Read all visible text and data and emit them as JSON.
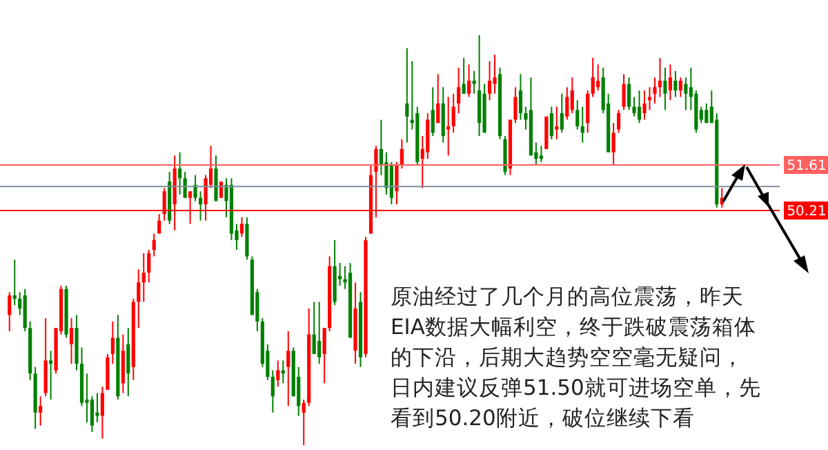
{
  "chart_data": {
    "type": "candlestick",
    "tick_labels": "y",
    "ylim": [
      42.85,
      56.68
    ],
    "categories": [
      null,
      null,
      null,
      null,
      null,
      null,
      null,
      null,
      null,
      null,
      null,
      null,
      null,
      null,
      null,
      null,
      null,
      null,
      null,
      null,
      null,
      null,
      null,
      null,
      null,
      null,
      null,
      null,
      null,
      null,
      null,
      null,
      null,
      null,
      null,
      null,
      null,
      null,
      null,
      null,
      null,
      null,
      null,
      null,
      null,
      null,
      null,
      null,
      null,
      null,
      null,
      null,
      null,
      null,
      null,
      null,
      null,
      null,
      null,
      null,
      null,
      null,
      null,
      null,
      null,
      null,
      null,
      null,
      null,
      null,
      null,
      null,
      null,
      null,
      null,
      null,
      null,
      null,
      null,
      null,
      null,
      null,
      null,
      null,
      null,
      null,
      null,
      null,
      null,
      null,
      null,
      null,
      null,
      null,
      null,
      null,
      null,
      null,
      null,
      null,
      null,
      null,
      null,
      null,
      null,
      null,
      null,
      null,
      null,
      null,
      null,
      null,
      null,
      null,
      null,
      null,
      null,
      null,
      null,
      null,
      null,
      null,
      null,
      null,
      null,
      null,
      null,
      null,
      null,
      null,
      null,
      null,
      null,
      null,
      null,
      null,
      null,
      null,
      null
    ],
    "ohlc": [
      [
        47.0,
        47.7,
        46.5,
        47.6
      ],
      [
        47.6,
        48.7,
        47.3,
        47.5
      ],
      [
        47.5,
        47.7,
        47.0,
        47.2
      ],
      [
        47.6,
        47.8,
        46.5,
        46.6
      ],
      [
        46.6,
        46.8,
        45.0,
        45.2
      ],
      [
        45.2,
        45.4,
        43.5,
        44.0
      ],
      [
        44.0,
        44.5,
        43.6,
        44.2
      ],
      [
        44.6,
        46.9,
        44.5,
        45.6
      ],
      [
        45.6,
        45.9,
        44.4,
        45.5
      ],
      [
        45.3,
        46.6,
        45.2,
        46.6
      ],
      [
        46.5,
        47.9,
        46.4,
        47.8
      ],
      [
        47.8,
        47.9,
        46.3,
        46.4
      ],
      [
        46.1,
        46.9,
        45.5,
        46.6
      ],
      [
        46.6,
        47.0,
        45.3,
        45.5
      ],
      [
        45.5,
        46.0,
        44.2,
        44.3
      ],
      [
        44.4,
        45.2,
        43.7,
        44.3
      ],
      [
        44.4,
        44.5,
        43.4,
        43.6
      ],
      [
        44.0,
        44.6,
        43.7,
        43.9
      ],
      [
        43.9,
        44.8,
        43.2,
        44.6
      ],
      [
        44.7,
        45.8,
        44.7,
        45.7
      ],
      [
        45.8,
        46.8,
        45.5,
        46.3
      ],
      [
        46.3,
        47.0,
        44.4,
        44.5
      ],
      [
        44.9,
        46.4,
        44.6,
        45.9
      ],
      [
        46.1,
        46.6,
        44.5,
        45.2
      ],
      [
        45.4,
        47.5,
        45.0,
        47.4
      ],
      [
        47.4,
        48.4,
        46.6,
        48.0
      ],
      [
        48.0,
        48.9,
        47.4,
        48.3
      ],
      [
        48.3,
        49.0,
        48.0,
        48.9
      ],
      [
        49.0,
        49.5,
        48.8,
        49.3
      ],
      [
        49.5,
        50.1,
        49.5,
        49.9
      ],
      [
        50.1,
        50.9,
        49.9,
        50.8
      ],
      [
        51.1,
        51.4,
        49.8,
        49.9
      ],
      [
        50.4,
        51.9,
        49.6,
        51.5
      ],
      [
        51.5,
        52.0,
        50.7,
        51.2
      ],
      [
        51.2,
        51.4,
        50.6,
        50.6
      ],
      [
        50.6,
        50.8,
        49.8,
        50.8
      ],
      [
        51.0,
        51.3,
        50.5,
        50.6
      ],
      [
        50.6,
        50.8,
        49.9,
        50.4
      ],
      [
        50.4,
        51.3,
        49.9,
        51.2
      ],
      [
        51.0,
        52.2,
        50.9,
        51.5
      ],
      [
        51.5,
        51.9,
        50.5,
        50.5
      ],
      [
        50.6,
        51.1,
        50.6,
        51.1
      ],
      [
        51.0,
        51.2,
        50.0,
        50.5
      ],
      [
        51.0,
        51.2,
        49.3,
        49.5
      ],
      [
        49.6,
        49.8,
        49.0,
        49.3
      ],
      [
        49.5,
        50.0,
        49.4,
        49.8
      ],
      [
        49.8,
        50.0,
        48.7,
        48.8
      ],
      [
        48.7,
        48.8,
        47.0,
        47.0
      ],
      [
        47.7,
        47.8,
        46.5,
        46.8
      ],
      [
        46.8,
        46.9,
        45.4,
        45.5
      ],
      [
        45.9,
        46.1,
        45.0,
        45.1
      ],
      [
        45.1,
        45.3,
        44.0,
        44.5
      ],
      [
        45.0,
        45.6,
        44.8,
        45.3
      ],
      [
        45.3,
        45.6,
        44.9,
        45.2
      ],
      [
        45.4,
        46.5,
        44.2,
        45.9
      ],
      [
        45.9,
        46.0,
        44.5,
        44.5
      ],
      [
        45.1,
        45.4,
        43.9,
        44.2
      ],
      [
        44.0,
        44.4,
        43.0,
        44.3
      ],
      [
        44.3,
        47.2,
        44.2,
        46.4
      ],
      [
        46.4,
        47.4,
        45.8,
        45.8
      ],
      [
        46.2,
        47.4,
        45.5,
        45.7
      ],
      [
        45.8,
        46.6,
        44.9,
        46.6
      ],
      [
        46.6,
        48.8,
        46.5,
        48.5
      ],
      [
        48.5,
        49.3,
        47.3,
        47.4
      ],
      [
        48.2,
        48.6,
        47.9,
        48.1
      ],
      [
        48.1,
        48.5,
        47.8,
        48.0
      ],
      [
        48.3,
        48.6,
        46.3,
        46.3
      ],
      [
        45.9,
        48.0,
        45.5,
        47.2
      ],
      [
        47.4,
        47.7,
        45.4,
        45.7
      ],
      [
        45.8,
        49.4,
        45.7,
        49.3
      ],
      [
        49.5,
        51.6,
        49.5,
        51.3
      ],
      [
        51.4,
        52.2,
        50.0,
        52.1
      ],
      [
        52.1,
        53.0,
        51.3,
        51.6
      ],
      [
        51.7,
        52.0,
        50.7,
        50.9
      ],
      [
        51.6,
        51.7,
        50.4,
        50.6
      ],
      [
        50.8,
        51.7,
        50.4,
        51.6
      ],
      [
        51.6,
        52.4,
        51.5,
        52.1
      ],
      [
        53.5,
        55.2,
        52.3,
        53.1
      ],
      [
        53.0,
        54.8,
        52.7,
        52.9
      ],
      [
        53.2,
        53.4,
        51.6,
        51.7
      ],
      [
        51.8,
        52.5,
        50.9,
        52.1
      ],
      [
        52.0,
        53.2,
        51.8,
        53.0
      ],
      [
        53.3,
        54.0,
        52.5,
        52.6
      ],
      [
        52.9,
        54.4,
        52.9,
        53.5
      ],
      [
        53.5,
        54.0,
        52.3,
        52.5
      ],
      [
        52.7,
        53.7,
        51.9,
        52.8
      ],
      [
        52.8,
        53.8,
        52.6,
        53.4
      ],
      [
        53.5,
        54.6,
        53.2,
        54.0
      ],
      [
        54.1,
        54.9,
        53.8,
        53.8
      ],
      [
        53.8,
        54.7,
        53.7,
        54.2
      ],
      [
        54.2,
        54.5,
        53.8,
        54.1
      ],
      [
        53.9,
        55.6,
        52.5,
        52.9
      ],
      [
        53.8,
        54.1,
        52.6,
        52.6
      ],
      [
        53.8,
        54.8,
        53.6,
        54.2
      ],
      [
        54.1,
        55.0,
        53.8,
        54.3
      ],
      [
        54.4,
        54.6,
        52.4,
        52.5
      ],
      [
        52.4,
        52.5,
        51.3,
        51.4
      ],
      [
        51.5,
        53.0,
        51.3,
        53.0
      ],
      [
        53.0,
        54.0,
        52.9,
        53.7
      ],
      [
        53.9,
        54.4,
        53.0,
        53.2
      ],
      [
        53.2,
        53.4,
        52.7,
        53.0
      ],
      [
        53.3,
        54.3,
        51.9,
        51.9
      ],
      [
        52.0,
        52.3,
        51.6,
        51.8
      ],
      [
        51.9,
        52.2,
        51.7,
        51.8
      ],
      [
        52.1,
        53.1,
        52.1,
        53.1
      ],
      [
        53.2,
        53.4,
        52.4,
        52.5
      ],
      [
        52.7,
        53.4,
        52.4,
        52.8
      ],
      [
        53.2,
        53.8,
        52.6,
        52.7
      ],
      [
        53.1,
        54.0,
        53.0,
        53.7
      ],
      [
        53.3,
        54.3,
        53.2,
        53.9
      ],
      [
        53.3,
        53.6,
        52.7,
        52.8
      ],
      [
        52.8,
        53.4,
        52.3,
        52.6
      ],
      [
        52.9,
        53.9,
        52.6,
        53.8
      ],
      [
        53.8,
        54.9,
        53.7,
        54.3
      ],
      [
        54.0,
        54.7,
        53.9,
        54.2
      ],
      [
        54.3,
        54.6,
        53.2,
        53.3
      ],
      [
        53.5,
        53.8,
        52.0,
        52.0
      ],
      [
        52.0,
        52.9,
        51.6,
        52.6
      ],
      [
        52.7,
        53.3,
        52.6,
        53.2
      ],
      [
        53.4,
        54.4,
        53.3,
        54.1
      ],
      [
        54.1,
        54.3,
        53.3,
        53.4
      ],
      [
        53.4,
        53.7,
        53.1,
        53.2
      ],
      [
        53.4,
        53.9,
        52.9,
        53.0
      ],
      [
        53.2,
        53.9,
        53.0,
        53.5
      ],
      [
        53.6,
        54.0,
        53.3,
        53.7
      ],
      [
        53.8,
        54.3,
        53.5,
        54.0
      ],
      [
        54.0,
        54.9,
        53.7,
        54.2
      ],
      [
        54.2,
        54.6,
        53.3,
        53.8
      ],
      [
        53.9,
        54.7,
        53.6,
        54.3
      ],
      [
        54.2,
        54.5,
        53.7,
        53.9
      ],
      [
        53.9,
        54.3,
        53.7,
        54.2
      ],
      [
        54.1,
        54.3,
        53.3,
        53.8
      ],
      [
        54.0,
        54.6,
        53.3,
        53.7
      ],
      [
        53.8,
        53.9,
        52.6,
        52.7
      ],
      [
        53.3,
        53.4,
        52.9,
        53.0
      ],
      [
        53.3,
        53.5,
        52.9,
        52.9
      ],
      [
        53.4,
        53.9,
        52.9,
        52.9
      ],
      [
        53.0,
        53.2,
        50.3,
        50.4
      ],
      [
        50.4,
        50.9,
        50.3,
        50.6
      ]
    ],
    "colors": [
      "#ff0000",
      "#008000",
      "#008000",
      "#008000",
      "#008000",
      "#008000",
      "#ff0000",
      "#ff0000",
      "#008000",
      "#ff0000",
      "#ff0000",
      "#008000",
      "#ff0000",
      "#008000",
      "#008000",
      "#008000",
      "#008000",
      "#008000",
      "#ff0000",
      "#ff0000",
      "#ff0000",
      "#008000",
      "#ff0000",
      "#008000",
      "#ff0000",
      "#ff0000",
      "#ff0000",
      "#ff0000",
      "#ff0000",
      "#ff0000",
      "#ff0000",
      "#008000",
      "#ff0000",
      "#008000",
      "#008000",
      "#ff0000",
      "#008000",
      "#008000",
      "#ff0000",
      "#ff0000",
      "#008000",
      "#ff0000",
      "#008000",
      "#008000",
      "#008000",
      "#ff0000",
      "#008000",
      "#008000",
      "#008000",
      "#008000",
      "#008000",
      "#008000",
      "#ff0000",
      "#008000",
      "#ff0000",
      "#008000",
      "#008000",
      "#ff0000",
      "#ff0000",
      "#008000",
      "#008000",
      "#ff0000",
      "#ff0000",
      "#008000",
      "#008000",
      "#008000",
      "#008000",
      "#ff0000",
      "#008000",
      "#ff0000",
      "#ff0000",
      "#ff0000",
      "#008000",
      "#008000",
      "#008000",
      "#ff0000",
      "#ff0000",
      "#008000",
      "#008000",
      "#008000",
      "#ff0000",
      "#ff0000",
      "#008000",
      "#ff0000",
      "#008000",
      "#ff0000",
      "#ff0000",
      "#ff0000",
      "#008000",
      "#ff0000",
      "#008000",
      "#008000",
      "#008000",
      "#ff0000",
      "#ff0000",
      "#008000",
      "#008000",
      "#ff0000",
      "#ff0000",
      "#008000",
      "#008000",
      "#008000",
      "#008000",
      "#008000",
      "#ff0000",
      "#008000",
      "#ff0000",
      "#008000",
      "#ff0000",
      "#ff0000",
      "#008000",
      "#008000",
      "#ff0000",
      "#ff0000",
      "#ff0000",
      "#008000",
      "#008000",
      "#ff0000",
      "#ff0000",
      "#ff0000",
      "#008000",
      "#008000",
      "#008000",
      "#ff0000",
      "#ff0000",
      "#ff0000",
      "#ff0000",
      "#008000",
      "#ff0000",
      "#008000",
      "#ff0000",
      "#008000",
      "#008000",
      "#008000",
      "#008000",
      "#008000",
      "#008000",
      "#008000",
      "#ff0000"
    ],
    "yticks": [
      50.21,
      51.61
    ],
    "ref_lines": [
      {
        "axis": "y",
        "value": 51.61,
        "color": "#ff6060"
      },
      {
        "axis": "y",
        "value": 50.95,
        "color": "#8090a0"
      },
      {
        "axis": "y",
        "value": 50.21,
        "color": "#ff0000"
      }
    ],
    "annotations": [
      "原油经过了几个月的高位震荡，昨天",
      "EIA数据大幅利空，终于跌破震荡箱体",
      "的下沿，后期大趋势空空毫无疑问，",
      "日内建议反弹51.50就可进场空单，先",
      "看到50.20附近，破位继续下看"
    ]
  }
}
